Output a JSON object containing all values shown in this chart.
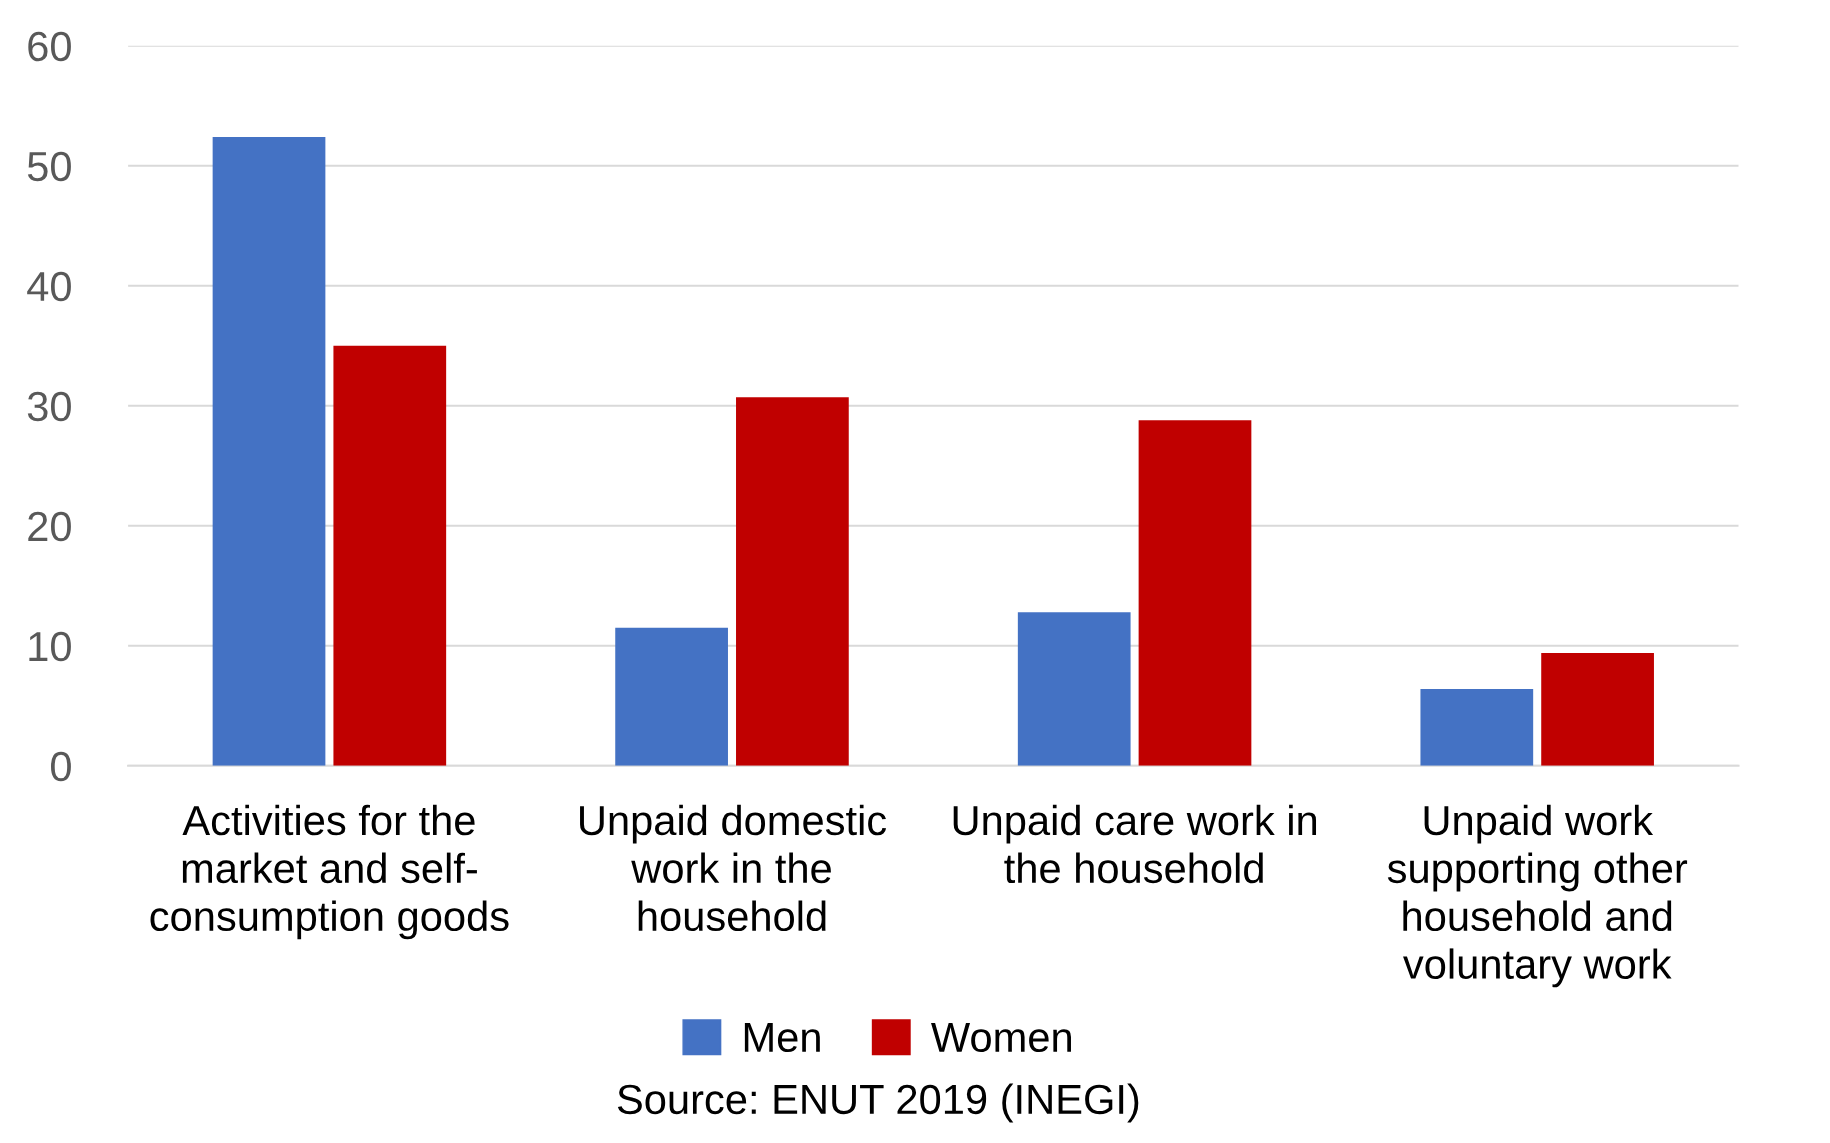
{
  "chart_data": {
    "type": "bar",
    "categories": [
      "Activities for the\nmarket and self-\nconsumption goods",
      "Unpaid domestic\nwork in the\nhousehold",
      "Unpaid care work in\nthe household",
      "Unpaid work\nsupporting other\nhousehold and\nvoluntary work"
    ],
    "series": [
      {
        "name": "Men",
        "color": "#4472c4",
        "values": [
          52.4,
          11.5,
          12.8,
          6.4
        ]
      },
      {
        "name": "Women",
        "color": "#c00000",
        "values": [
          35.0,
          30.7,
          28.8,
          9.4
        ]
      }
    ],
    "ylim": [
      0,
      60
    ],
    "yticks": [
      0,
      10,
      20,
      30,
      40,
      50,
      60
    ],
    "grid": "y",
    "legend": "bottom",
    "annotations": [
      "Source: ENUT 2019 (INEGI)"
    ]
  }
}
